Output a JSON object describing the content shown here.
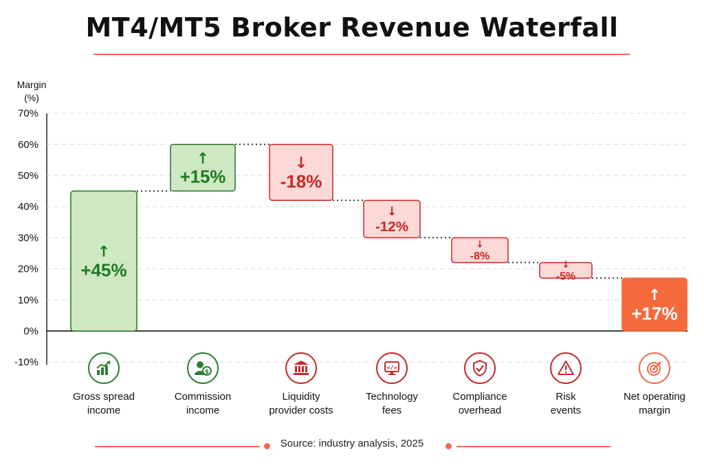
{
  "title": "MT4/MT5 Broker Revenue Waterfall",
  "source": "Source: industry analysis, 2025",
  "colors": {
    "gain_fill": "#cfe8c4",
    "gain_stroke": "#2e7d32",
    "gain_text": "#1e7a1e",
    "loss_fill": "#fbd9d6",
    "loss_stroke": "#d32f2f",
    "loss_text": "#c62828",
    "total_fill": "#f56a3c",
    "total_text": "#ffffff",
    "accent": "#f06a4a"
  },
  "chart_data": {
    "type": "bar",
    "subtype": "waterfall",
    "title": "MT4/MT5 Broker Revenue Waterfall",
    "ylabel": "Margin (%)",
    "ylabel_lines": [
      "Margin",
      "(%)"
    ],
    "ylim": [
      -10,
      70
    ],
    "yticks": [
      -10,
      0,
      10,
      20,
      30,
      40,
      50,
      60,
      70
    ],
    "ytick_labels": [
      "-10%",
      "0%",
      "10%",
      "20%",
      "30%",
      "40%",
      "50%",
      "60%",
      "70%"
    ],
    "grid": true,
    "connectors": "dotted",
    "categories": [
      "Gross spread income",
      "Commission income",
      "Liquidity provider costs",
      "Technology fees",
      "Compliance overhead",
      "Risk events",
      "Net operating margin"
    ],
    "category_lines": [
      [
        "Gross spread",
        "income"
      ],
      [
        "Commission",
        "income"
      ],
      [
        "Liquidity",
        "provider costs"
      ],
      [
        "Technology",
        "fees"
      ],
      [
        "Compliance",
        "overhead"
      ],
      [
        "Risk",
        "events"
      ],
      [
        "Net operating",
        "margin"
      ]
    ],
    "values": [
      45,
      15,
      -18,
      -12,
      -8,
      -5,
      17
    ],
    "kinds": [
      "gain",
      "gain",
      "loss",
      "loss",
      "loss",
      "loss",
      "total"
    ],
    "value_labels": [
      "+45%",
      "+15%",
      "-18%",
      "-12%",
      "-8%",
      "-5%",
      "+17%"
    ],
    "icons": [
      "growth-chart-icon",
      "commission-person-icon",
      "bank-icon",
      "code-monitor-icon",
      "shield-check-icon",
      "warning-triangle-icon",
      "target-icon"
    ]
  }
}
